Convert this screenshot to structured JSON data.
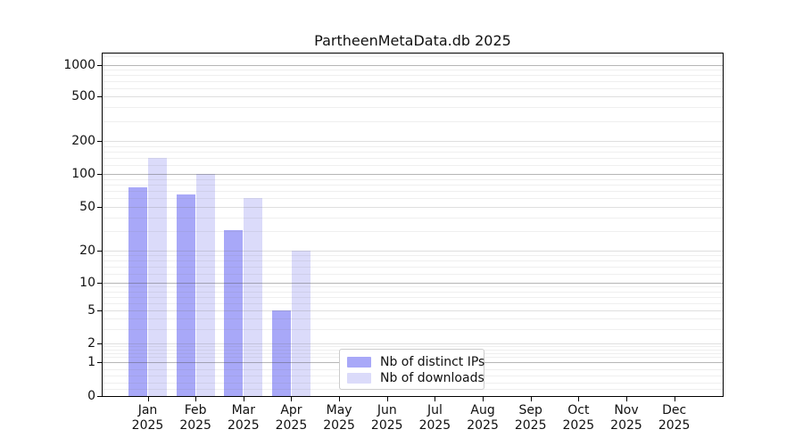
{
  "chart_data": {
    "type": "bar",
    "title": "PartheenMetaData.db 2025",
    "categories": [
      "Jan",
      "Feb",
      "Mar",
      "Apr",
      "May",
      "Jun",
      "Jul",
      "Aug",
      "Sep",
      "Oct",
      "Nov",
      "Dec"
    ],
    "x_sublabel": "2025",
    "series": [
      {
        "name": "Nb of distinct IPs",
        "color": "#a8a8f8",
        "values": [
          75,
          65,
          31,
          5,
          0,
          0,
          0,
          0,
          0,
          0,
          0,
          0
        ]
      },
      {
        "name": "Nb of downloads",
        "color": "#dbdbfa",
        "values": [
          140,
          100,
          60,
          20,
          0,
          0,
          0,
          0,
          0,
          0,
          0,
          0
        ]
      }
    ],
    "yscale": "symlog",
    "ytick_values": [
      0,
      1,
      2,
      5,
      10,
      20,
      50,
      100,
      200,
      500,
      1000
    ],
    "ytick_labels": [
      "0",
      "1",
      "2",
      "5",
      "10",
      "20",
      "50",
      "100",
      "200",
      "500",
      "1000"
    ],
    "ylim": [
      0,
      1300
    ],
    "grid": "both",
    "legend_position": "lower center-left inside plot",
    "colors": {
      "axis": "#000000",
      "major_gridline": "#b1b1b1",
      "minor_gridline": "#eeeeee",
      "background": "#ffffff"
    }
  }
}
